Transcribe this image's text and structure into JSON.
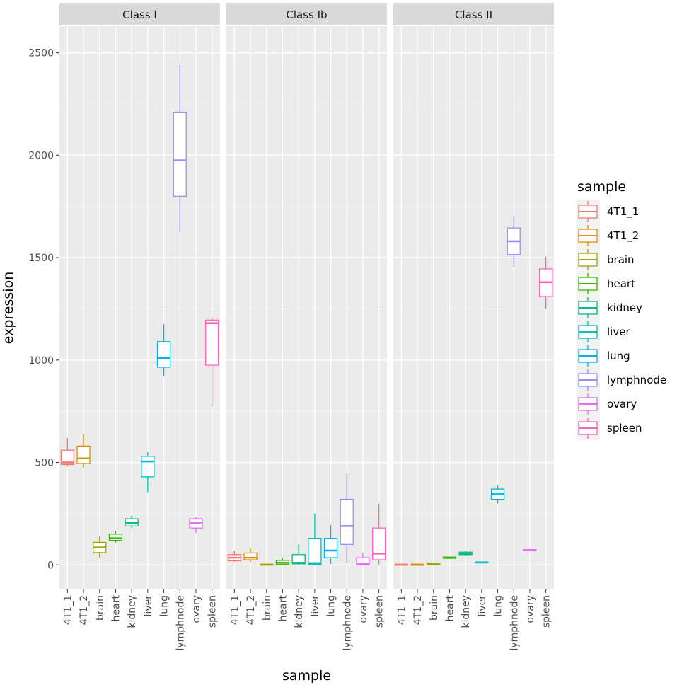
{
  "chart_data": {
    "type": "boxplot",
    "xlabel": "sample",
    "ylabel": "expression",
    "ylim": [
      -120,
      2630
    ],
    "yticks": [
      0,
      500,
      1000,
      1500,
      2000,
      2500
    ],
    "categories": [
      "4T1_1",
      "4T1_2",
      "brain",
      "heart",
      "kidney",
      "liver",
      "lung",
      "lymphnode",
      "ovary",
      "spleen"
    ],
    "colors": {
      "4T1_1": "#F8766D",
      "4T1_2": "#D89000",
      "brain": "#A3A500",
      "heart": "#39B600",
      "kidney": "#00BF7D",
      "liver": "#00BFC4",
      "lung": "#00B0F6",
      "lymphnode": "#9590FF",
      "ovary": "#E76BF3",
      "spleen": "#FF62BC"
    },
    "legend": {
      "title": "sample",
      "position": "right",
      "entries": [
        "4T1_1",
        "4T1_2",
        "brain",
        "heart",
        "kidney",
        "liver",
        "lung",
        "lymphnode",
        "ovary",
        "spleen"
      ]
    },
    "panels": [
      {
        "title": "Class I",
        "boxes": [
          {
            "sample": "4T1_1",
            "min": 480,
            "q1": 490,
            "median": 500,
            "q3": 560,
            "max": 620
          },
          {
            "sample": "4T1_2",
            "min": 475,
            "q1": 495,
            "median": 520,
            "q3": 580,
            "max": 640
          },
          {
            "sample": "brain",
            "min": 35,
            "q1": 60,
            "median": 85,
            "q3": 110,
            "max": 140
          },
          {
            "sample": "heart",
            "min": 105,
            "q1": 120,
            "median": 130,
            "q3": 150,
            "max": 165
          },
          {
            "sample": "kidney",
            "min": 180,
            "q1": 190,
            "median": 205,
            "q3": 225,
            "max": 240
          },
          {
            "sample": "liver",
            "min": 355,
            "q1": 430,
            "median": 505,
            "q3": 530,
            "max": 550
          },
          {
            "sample": "lung",
            "min": 920,
            "q1": 965,
            "median": 1010,
            "q3": 1090,
            "max": 1175
          },
          {
            "sample": "lymphnode",
            "min": 1625,
            "q1": 1800,
            "median": 1975,
            "q3": 2210,
            "max": 2440
          },
          {
            "sample": "ovary",
            "min": 155,
            "q1": 180,
            "median": 205,
            "q3": 225,
            "max": 235
          },
          {
            "sample": "spleen",
            "min": 770,
            "q1": 975,
            "median": 1180,
            "q3": 1195,
            "max": 1210
          }
        ]
      },
      {
        "title": "Class Ib",
        "boxes": [
          {
            "sample": "4T1_1",
            "min": 15,
            "q1": 20,
            "median": 35,
            "q3": 50,
            "max": 70
          },
          {
            "sample": "4T1_2",
            "min": 15,
            "q1": 25,
            "median": 35,
            "q3": 58,
            "max": 80
          },
          {
            "sample": "brain",
            "min": 0,
            "q1": 0,
            "median": 1,
            "q3": 3,
            "max": 5
          },
          {
            "sample": "heart",
            "min": 0,
            "q1": 2,
            "median": 10,
            "q3": 22,
            "max": 35
          },
          {
            "sample": "kidney",
            "min": 0,
            "q1": 5,
            "median": 10,
            "q3": 50,
            "max": 100
          },
          {
            "sample": "liver",
            "min": 0,
            "q1": 3,
            "median": 8,
            "q3": 130,
            "max": 250
          },
          {
            "sample": "lung",
            "min": 5,
            "q1": 35,
            "median": 70,
            "q3": 130,
            "max": 195
          },
          {
            "sample": "lymphnode",
            "min": 10,
            "q1": 100,
            "median": 190,
            "q3": 320,
            "max": 445
          },
          {
            "sample": "ovary",
            "min": 0,
            "q1": 0,
            "median": 5,
            "q3": 35,
            "max": 60
          },
          {
            "sample": "spleen",
            "min": 0,
            "q1": 25,
            "median": 55,
            "q3": 180,
            "max": 300
          }
        ]
      },
      {
        "title": "Class II",
        "boxes": [
          {
            "sample": "4T1_1",
            "min": 0,
            "q1": 0,
            "median": 1,
            "q3": 2,
            "max": 3
          },
          {
            "sample": "4T1_2",
            "min": 0,
            "q1": 0,
            "median": 1,
            "q3": 2,
            "max": 3
          },
          {
            "sample": "brain",
            "min": 2,
            "q1": 3,
            "median": 5,
            "q3": 7,
            "max": 9
          },
          {
            "sample": "heart",
            "min": 30,
            "q1": 32,
            "median": 35,
            "q3": 38,
            "max": 40
          },
          {
            "sample": "kidney",
            "min": 45,
            "q1": 50,
            "median": 55,
            "q3": 62,
            "max": 68
          },
          {
            "sample": "liver",
            "min": 10,
            "q1": 11,
            "median": 12,
            "q3": 13,
            "max": 14
          },
          {
            "sample": "lung",
            "min": 300,
            "q1": 320,
            "median": 345,
            "q3": 370,
            "max": 390
          },
          {
            "sample": "lymphnode",
            "min": 1455,
            "q1": 1515,
            "median": 1580,
            "q3": 1645,
            "max": 1705
          },
          {
            "sample": "ovary",
            "min": 68,
            "q1": 70,
            "median": 72,
            "q3": 74,
            "max": 76
          },
          {
            "sample": "spleen",
            "min": 1250,
            "q1": 1310,
            "median": 1380,
            "q3": 1445,
            "max": 1505
          }
        ]
      }
    ]
  }
}
